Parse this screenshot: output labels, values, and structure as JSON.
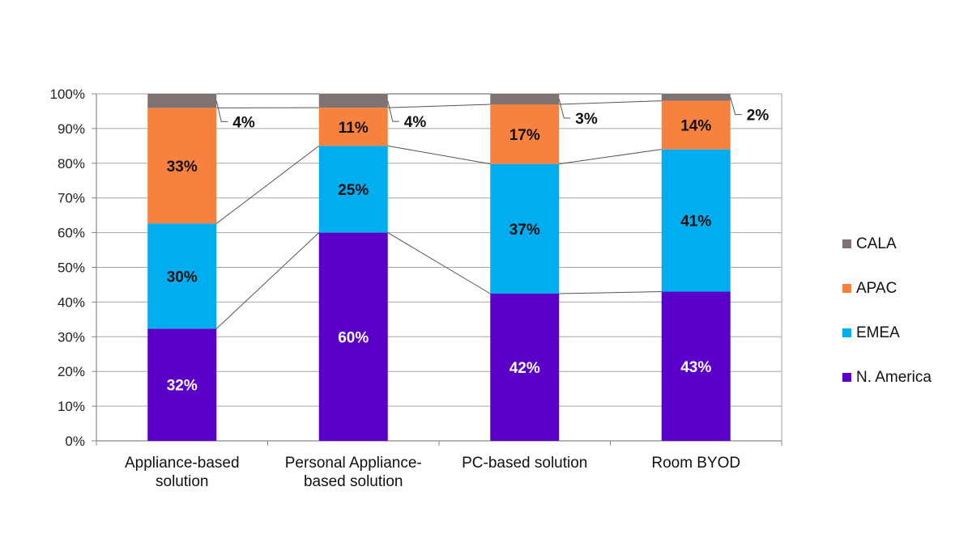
{
  "chart_data": {
    "type": "bar",
    "stacked": true,
    "percent_stacked": true,
    "categories": [
      "Appliance-based solution",
      "Personal Appliance-based solution",
      "PC-based solution",
      "Room BYOD"
    ],
    "category_label_lines": [
      [
        "Appliance-based",
        "solution"
      ],
      [
        "Personal Appliance-",
        "based solution"
      ],
      [
        "PC-based solution"
      ],
      [
        "Room BYOD"
      ]
    ],
    "series": [
      {
        "name": "N. America",
        "color": "#5b00c9",
        "label_color": "#ffffff",
        "values": [
          32,
          60,
          42,
          43
        ],
        "labels": [
          "32%",
          "60%",
          "42%",
          "43%"
        ]
      },
      {
        "name": "EMEA",
        "color": "#00adef",
        "label_color": "#111111",
        "values": [
          30,
          25,
          37,
          41
        ],
        "labels": [
          "30%",
          "25%",
          "37%",
          "41%"
        ]
      },
      {
        "name": "APAC",
        "color": "#f7813f",
        "label_color": "#111111",
        "values": [
          33,
          11,
          17,
          14
        ],
        "labels": [
          "33%",
          "11%",
          "17%",
          "14%"
        ]
      },
      {
        "name": "CALA",
        "color": "#7f7272",
        "label_color": "#111111",
        "values": [
          4,
          4,
          3,
          2
        ],
        "labels": [
          "4%",
          "4%",
          "3%",
          "2%"
        ]
      }
    ],
    "legend_order": [
      "CALA",
      "APAC",
      "EMEA",
      "N. America"
    ],
    "legend_position": "right",
    "y_ticks": [
      "0%",
      "10%",
      "20%",
      "30%",
      "40%",
      "50%",
      "60%",
      "70%",
      "80%",
      "90%",
      "100%"
    ],
    "ylim": [
      0,
      100
    ],
    "grid": true,
    "series_lines": true
  }
}
